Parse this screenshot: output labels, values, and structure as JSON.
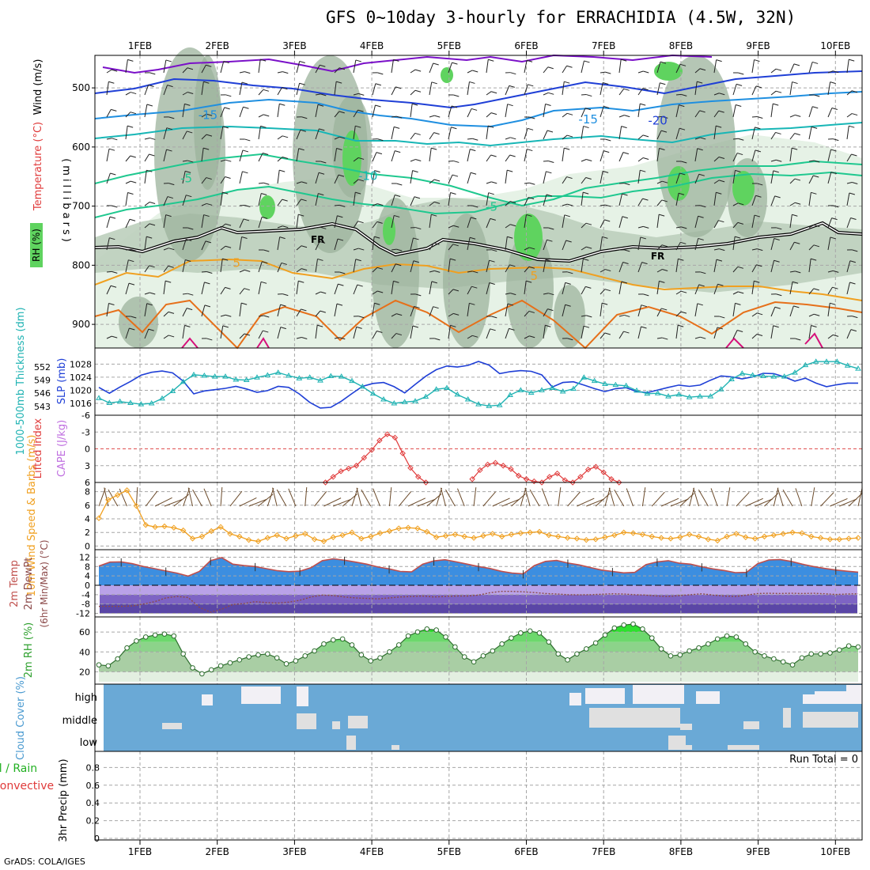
{
  "title": "GFS 0~10day 3-hourly for ERRACHIDIA (4.5W, 32N)",
  "credit": "GrADS: COLA/IGES",
  "colors": {
    "rh_light": "#e6f2e6",
    "rh_mid": "#bdcfbd",
    "rh_dark": "#9cb39c",
    "rh_green": "#5fd35f",
    "t_purple": "#7a10c8",
    "t_blue": "#1f3fd6",
    "t_sky": "#1f8fe0",
    "t_cyan": "#17b6b6",
    "t_teal": "#1fc88f",
    "t_orange": "#f0a020",
    "t_dorange": "#e6701a",
    "t_magenta": "#d6107a",
    "slp": "#1f3fd6",
    "thick": "#20b3b3",
    "li": "#e03a3a",
    "wind": "#f0a020",
    "barb": "#6b4a2a",
    "temp_fill": "#3c8ee0",
    "temp_line": "#c0504d",
    "dew_line": "#8c4a4a",
    "cloud_bg": "#6aa9d6",
    "cloud_white": "#f2f0f5",
    "cloud_grey": "#e0e0e0",
    "grid": "#a6a6a6"
  },
  "chart_data": [
    {
      "name": "vertical-profile",
      "type": "heatmap",
      "title": "Wind (m/s) / Temperature (°C) / RH (%)",
      "ylabel": "(millibars)",
      "ylim": [
        445,
        940
      ],
      "y_ticks": [
        500,
        600,
        700,
        800,
        900
      ],
      "x_ticks": [
        "1FEB",
        "2FEB",
        "3FEB",
        "4FEB",
        "5FEB",
        "6FEB",
        "7FEB",
        "8FEB",
        "9FEB",
        "10FEB"
      ],
      "labels": {
        "wind": "Wind (m/s)",
        "temperature": "Temperature (°C)",
        "rh": "RH (%)"
      },
      "contour_labels": [
        {
          "text": "-15",
          "day": 1.88,
          "p": 553
        },
        {
          "text": "-15",
          "day": 6.8,
          "p": 560
        },
        {
          "text": "-20",
          "day": 7.7,
          "p": 562
        },
        {
          "text": "-5",
          "day": 1.6,
          "p": 660
        },
        {
          "text": "-10",
          "day": 3.95,
          "p": 656
        },
        {
          "text": "-5",
          "day": 5.55,
          "p": 708
        },
        {
          "text": "FR",
          "day": 3.3,
          "p": 762
        },
        {
          "text": "FR",
          "day": 7.7,
          "p": 790
        },
        {
          "text": "5",
          "day": 2.25,
          "p": 803
        },
        {
          "text": "5",
          "day": 6.1,
          "p": 825
        }
      ]
    },
    {
      "name": "slp-thickness",
      "type": "line",
      "labels": {
        "thickness": "1000-500mb Thickness (dm)",
        "slp": "SLP (mb)"
      },
      "slp_ticks": [
        1016,
        1020,
        1024,
        1028
      ],
      "thick_ticks": [
        543,
        546,
        549,
        552
      ],
      "slp_ylim": [
        1013.6,
        1030.5
      ],
      "thick_ylim": [
        541.9,
        554.5
      ],
      "series": [
        {
          "name": "SLP (mb)",
          "values": [
            1020.9,
            1019.1,
            1021.0,
            1022.7,
            1024.6,
            1025.5,
            1025.9,
            1025.3,
            1022.8,
            1018.9,
            1019.8,
            1020.2,
            1020.6,
            1021.2,
            1020.4,
            1019.4,
            1019.9,
            1021.2,
            1020.9,
            1018.9,
            1016.3,
            1014.6,
            1014.8,
            1016.7,
            1019.0,
            1021.2,
            1022.1,
            1022.4,
            1021.1,
            1019.2,
            1021.8,
            1024.3,
            1026.3,
            1027.4,
            1027.1,
            1027.6,
            1028.8,
            1027.7,
            1025.1,
            1025.7,
            1026.0,
            1025.8,
            1024.7,
            1021.0,
            1022.4,
            1022.6,
            1021.6,
            1020.5,
            1019.6,
            1020.5,
            1020.8,
            1019.6,
            1019.3,
            1020.1,
            1020.9,
            1021.6,
            1021.2,
            1021.6,
            1023.1,
            1024.4,
            1024.1,
            1023.5,
            1024.1,
            1025.2,
            1025.1,
            1024.1,
            1022.8,
            1023.7,
            1022.2,
            1021.1,
            1021.7,
            1022.2,
            1022.2
          ]
        },
        {
          "name": "1000-500mb Thickness (dm)",
          "values": [
            544.9,
            543.8,
            544.1,
            543.8,
            543.5,
            543.7,
            544.8,
            546.5,
            548.6,
            550.2,
            550.0,
            549.8,
            549.8,
            549.1,
            549.0,
            549.6,
            550.1,
            550.7,
            550.0,
            549.4,
            549.6,
            548.9,
            549.9,
            549.8,
            548.8,
            547.5,
            545.9,
            544.6,
            543.7,
            544.0,
            544.2,
            545.2,
            546.9,
            547.2,
            545.7,
            544.6,
            543.5,
            543.1,
            543.3,
            545.6,
            546.7,
            546.1,
            546.7,
            547.2,
            546.4,
            547.0,
            549.6,
            548.8,
            548.1,
            547.9,
            547.7,
            546.6,
            545.9,
            546.0,
            545.3,
            545.7,
            545.1,
            545.3,
            545.3,
            546.9,
            549.2,
            550.5,
            550.1,
            549.9,
            549.8,
            549.8,
            550.7,
            552.4,
            553.2,
            553.2,
            553.2,
            552.3,
            551.6
          ]
        }
      ]
    },
    {
      "name": "lifted-index-cape",
      "type": "line",
      "labels": {
        "li": "Lifted Index",
        "cape": "CAPE (J/kg)"
      },
      "y_ticks": [
        6,
        3,
        0,
        -3,
        -6
      ],
      "ylim": [
        -6,
        6
      ],
      "x": [
        2.6,
        2.7,
        2.8,
        2.9,
        3.0,
        3.1,
        3.2,
        3.3,
        3.4,
        3.5,
        3.6,
        3.7,
        3.8,
        3.9,
        4.0,
        4.1,
        4.2,
        4.3,
        4.4,
        4.5,
        4.6,
        4.7,
        4.8,
        4.9,
        5.0,
        5.1,
        5.2,
        5.3,
        5.4,
        5.5,
        5.6,
        5.7,
        5.8,
        5.9,
        6.0,
        6.1,
        6.2,
        6.3,
        6.4,
        6.5,
        6.6,
        6.7,
        6.8,
        6.9,
        7.0,
        7.1,
        7.2,
        7.3,
        7.4,
        7.5,
        7.6,
        7.7,
        7.8,
        7.9,
        8.0,
        8.1,
        8.2,
        8.3,
        8.4,
        8.5
      ],
      "values": [
        null,
        null,
        null,
        null,
        null,
        null,
        null,
        null,
        6.0,
        5.0,
        4.0,
        3.5,
        3.0,
        1.6,
        0.2,
        -1.5,
        -2.6,
        -2.0,
        0.8,
        3.4,
        5.0,
        6.0,
        null,
        null,
        null,
        null,
        null,
        5.4,
        3.8,
        2.8,
        2.5,
        3.0,
        3.6,
        4.8,
        5.4,
        5.8,
        6.0,
        5.0,
        4.4,
        5.6,
        6.0,
        5.0,
        3.7,
        3.2,
        4.2,
        5.4,
        6.0,
        null,
        null,
        null,
        null,
        null,
        null,
        null,
        null,
        null,
        null,
        null,
        null,
        null
      ]
    },
    {
      "name": "wind10m",
      "type": "line",
      "labels": {
        "speed": "10m Wind Speed & Barbs (m/s)"
      },
      "y_ticks": [
        0,
        2,
        4,
        6,
        8
      ],
      "ylim": [
        -0.3,
        9.0
      ],
      "values": [
        4.1,
        6.8,
        7.5,
        8.2,
        5.9,
        3.1,
        2.8,
        2.9,
        2.7,
        2.3,
        1.1,
        1.4,
        2.2,
        2.8,
        1.8,
        1.4,
        0.9,
        0.7,
        1.2,
        1.6,
        1.1,
        1.5,
        1.8,
        1.0,
        0.7,
        1.3,
        1.6,
        2.0,
        1.1,
        1.4,
        1.9,
        2.2,
        2.6,
        2.7,
        2.6,
        2.1,
        1.3,
        1.5,
        1.7,
        1.4,
        1.2,
        1.5,
        1.8,
        1.4,
        1.7,
        1.9,
        2.0,
        2.1,
        1.6,
        1.4,
        1.2,
        1.1,
        0.9,
        1.0,
        1.3,
        1.6,
        2.0,
        1.9,
        1.7,
        1.4,
        1.2,
        1.1,
        1.3,
        1.7,
        1.4,
        1.0,
        0.8,
        1.4,
        1.8,
        1.3,
        1.1,
        1.4,
        1.6,
        1.8,
        2.0,
        1.9,
        1.4,
        1.2,
        1.0,
        1.0,
        1.1,
        1.2
      ]
    },
    {
      "name": "temp-dewpoint",
      "type": "area",
      "labels": {
        "temp": "2m Temp",
        "dew": "2m DewPt",
        "minmax": "(6hr Min/Max) (°C)"
      },
      "y_ticks": [
        12,
        8,
        4,
        0,
        -4,
        -8,
        -12
      ],
      "ylim": [
        -13.5,
        13.5
      ],
      "series": [
        {
          "name": "2m Temp",
          "values": [
            8.2,
            9.9,
            10.0,
            9.2,
            8.0,
            7.1,
            6.1,
            5.2,
            3.9,
            5.9,
            10.5,
            11.8,
            9.0,
            8.4,
            8.0,
            7.1,
            6.2,
            5.8,
            6.0,
            7.5,
            10.5,
            11.3,
            10.7,
            9.9,
            9.0,
            7.8,
            7.0,
            5.9,
            5.7,
            9.0,
            10.4,
            10.9,
            10.0,
            9.0,
            8.0,
            7.2,
            6.0,
            5.2,
            4.9,
            8.4,
            10.2,
            10.6,
            9.5,
            8.7,
            7.6,
            6.5,
            5.9,
            5.3,
            5.5,
            8.8,
            10.0,
            10.5,
            9.4,
            9.0,
            7.9,
            7.0,
            6.3,
            5.4,
            5.5,
            9.2,
            10.8,
            11.0,
            10.2,
            9.0,
            8.0,
            7.2,
            6.5,
            6.0,
            5.6
          ]
        },
        {
          "name": "2m DewPt",
          "values": [
            -9.0,
            -9.0,
            -9.0,
            -8.8,
            -8.0,
            -7.0,
            -5.4,
            -4.8,
            -5.2,
            -9.4,
            -11.5,
            -10.2,
            -8.2,
            -7.8,
            -7.0,
            -7.4,
            -7.6,
            -7.2,
            -6.4,
            -5.0,
            -4.2,
            -4.4,
            -5.0,
            -5.4,
            -5.6,
            -5.8,
            -5.4,
            -5.0,
            -4.8,
            -4.6,
            -5.0,
            -4.8,
            -4.6,
            -4.6,
            -4.2,
            -3.2,
            -2.6,
            -2.6,
            -2.8,
            -3.1,
            -3.5,
            -3.7,
            -4.0,
            -4.1,
            -4.0,
            -3.8,
            -3.6,
            -3.7,
            -4.0,
            -4.2,
            -4.6,
            -4.8,
            -4.4,
            -4.0,
            -3.6,
            -4.2,
            -4.6,
            -4.8,
            -4.2,
            -3.5,
            -3.4,
            -3.5,
            -3.4,
            -3.5,
            -3.4,
            -3.6,
            -3.9,
            -3.7,
            -3.6
          ]
        }
      ]
    },
    {
      "name": "rh2m",
      "type": "area",
      "labels": {
        "rh": "2m RH (%)"
      },
      "y_ticks": [
        20,
        40,
        60
      ],
      "ylim": [
        10,
        72
      ],
      "values": [
        27,
        26,
        33,
        44,
        51,
        55,
        57,
        58,
        56,
        38,
        24,
        18,
        22,
        26,
        29,
        32,
        35,
        37,
        38,
        34,
        28,
        31,
        36,
        41,
        48,
        52,
        53,
        47,
        37,
        31,
        34,
        40,
        47,
        56,
        60,
        63,
        62,
        55,
        45,
        35,
        30,
        36,
        41,
        48,
        54,
        59,
        61,
        59,
        50,
        38,
        32,
        38,
        43,
        49,
        57,
        64,
        67,
        68,
        63,
        54,
        43,
        36,
        37,
        41,
        44,
        48,
        53,
        56,
        55,
        48,
        40,
        36,
        33,
        30,
        27,
        34,
        38,
        38,
        39,
        42,
        46,
        45
      ]
    },
    {
      "name": "cloud-cover",
      "type": "heatmap",
      "labels": {
        "cloud": "Cloud Cover (%)",
        "high": "high",
        "middle": "middle",
        "low": "low"
      }
    },
    {
      "name": "precip",
      "type": "bar",
      "labels": {
        "precip": "3hr Precip (mm)",
        "rain": "Total / Rain",
        "conv": "Convective",
        "run_total": "Run Total = 0"
      },
      "y_ticks": [
        0,
        0.2,
        0.4,
        0.6,
        0.8
      ],
      "ylim": [
        0,
        1.0
      ],
      "values": []
    }
  ]
}
